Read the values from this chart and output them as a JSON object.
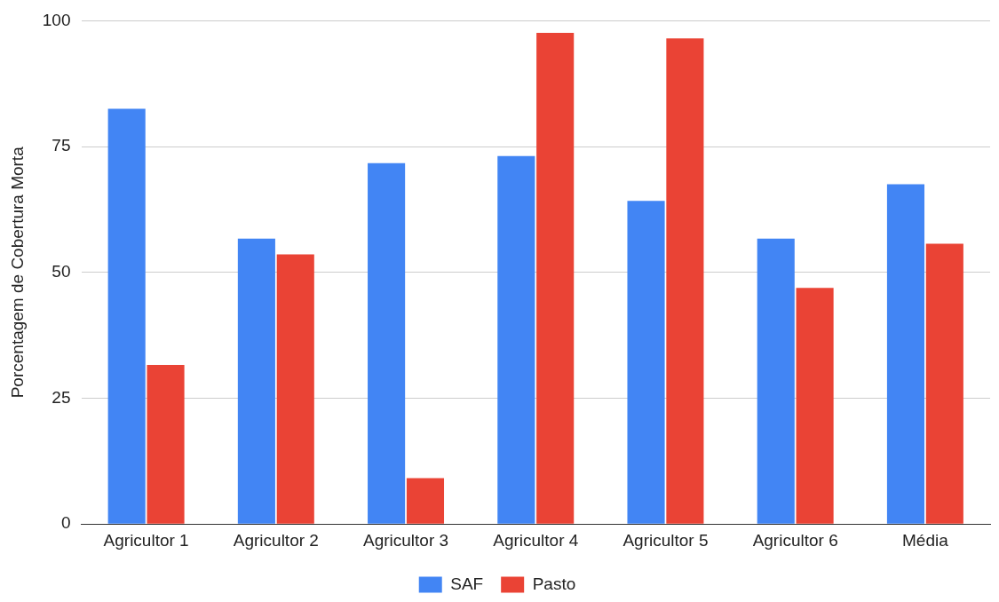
{
  "chart_data": {
    "type": "bar",
    "ylabel": "Porcentagem de Cobertura Morta",
    "categories": [
      "Agricultor 1",
      "Agricultor 2",
      "Agricultor 3",
      "Agricultor 4",
      "Agricultor 5",
      "Agricultor 6",
      "Média"
    ],
    "series": [
      {
        "name": "SAF",
        "color": "#4285f4",
        "values": [
          82.5,
          56.7,
          71.7,
          73.1,
          64.2,
          56.7,
          67.5
        ]
      },
      {
        "name": "Pasto",
        "color": "#ea4335",
        "values": [
          31.6,
          53.6,
          9.1,
          97.6,
          96.5,
          46.9,
          55.7
        ]
      }
    ],
    "ylim": [
      0,
      100
    ],
    "yticks": [
      0,
      25,
      50,
      75,
      100
    ],
    "grid": "y",
    "legend": "bottom"
  }
}
